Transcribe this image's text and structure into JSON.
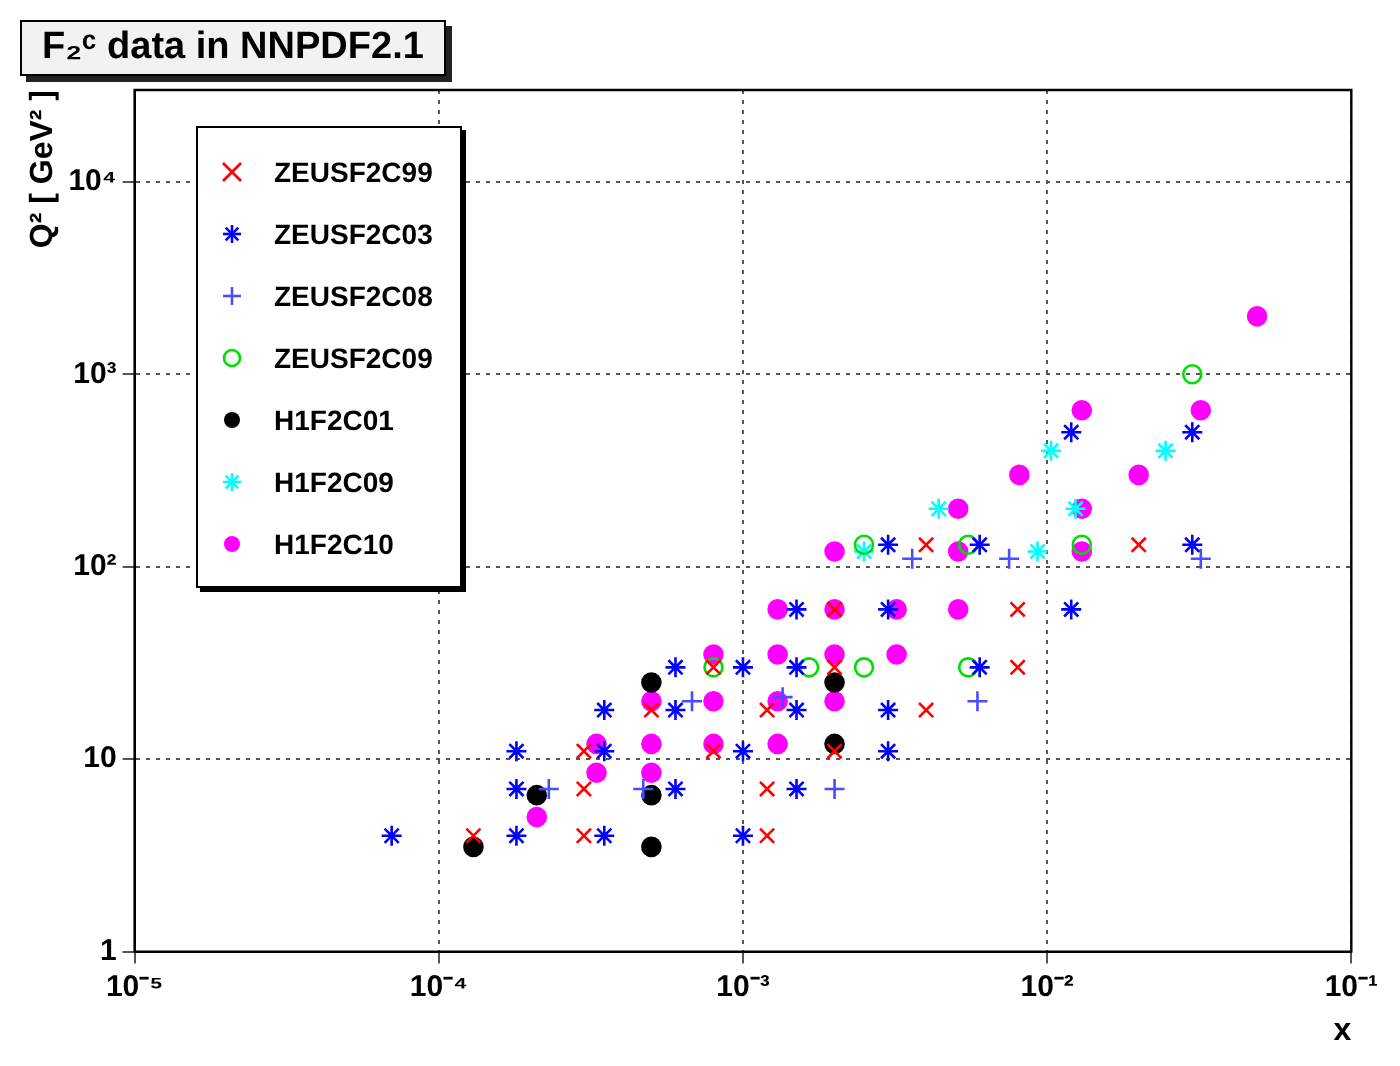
{
  "chart_data": {
    "type": "scatter",
    "title": "F₂ᶜ data in NNPDF2.1",
    "xlabel": "x",
    "ylabel": "Q² [ GeV² ]",
    "log": "xy",
    "grid": true,
    "legend": "top left",
    "xlim": [
      1e-05,
      0.1
    ],
    "ylim": [
      1,
      30000
    ],
    "xticks": [
      {
        "value": 1e-05,
        "label": "10⁻⁵"
      },
      {
        "value": 0.0001,
        "label": "10⁻⁴"
      },
      {
        "value": 0.001,
        "label": "10⁻³"
      },
      {
        "value": 0.01,
        "label": "10⁻²"
      },
      {
        "value": 0.1,
        "label": "10⁻¹"
      }
    ],
    "yticks": [
      1,
      10,
      {
        "value": 100,
        "label": "10²"
      },
      {
        "value": 1000,
        "label": "10³"
      },
      {
        "value": 10000,
        "label": "10⁴"
      }
    ],
    "series": [
      {
        "name": "ZEUSF2C99",
        "color": "#ff0000",
        "marker": "x",
        "x": [
          0.00013,
          0.0003,
          0.0003,
          0.0003,
          0.0005,
          0.0008,
          0.0008,
          0.0012,
          0.0012,
          0.0012,
          0.002,
          0.002,
          0.002,
          0.004,
          0.004,
          0.008,
          0.008,
          0.02
        ],
        "values": [
          4,
          4,
          7,
          11,
          18,
          11,
          30,
          4,
          7,
          18,
          11,
          30,
          60,
          18,
          130,
          30,
          60,
          130
        ]
      },
      {
        "name": "ZEUSF2C03",
        "color": "#0000ff",
        "marker": "cross",
        "x": [
          7e-05,
          0.00018,
          0.00018,
          0.00018,
          0.00035,
          0.00035,
          0.00035,
          0.0006,
          0.0006,
          0.0006,
          0.001,
          0.001,
          0.001,
          0.0015,
          0.0015,
          0.0015,
          0.0015,
          0.003,
          0.003,
          0.003,
          0.003,
          0.006,
          0.006,
          0.012,
          0.012,
          0.03,
          0.03
        ],
        "values": [
          4,
          4,
          7,
          11,
          4,
          11,
          18,
          7,
          18,
          30,
          4,
          11,
          30,
          7,
          18,
          30,
          60,
          11,
          18,
          60,
          130,
          30,
          130,
          60,
          500,
          130,
          500
        ]
      },
      {
        "name": "ZEUSF2C08",
        "color": "#4c4cff",
        "marker": "plus",
        "x": [
          0.00023,
          0.00047,
          0.00068,
          0.00135,
          0.002,
          0.0036,
          0.0059,
          0.0075,
          0.032
        ],
        "values": [
          7,
          7,
          20,
          21,
          7,
          110,
          20,
          110,
          110
        ]
      },
      {
        "name": "ZEUSF2C09",
        "color": "#00dd00",
        "marker": "circle-open",
        "x": [
          0.0008,
          0.00165,
          0.0025,
          0.0025,
          0.0055,
          0.0055,
          0.013,
          0.03
        ],
        "values": [
          30,
          30,
          30,
          130,
          30,
          130,
          130,
          1000
        ]
      },
      {
        "name": "H1F2C01",
        "color": "#000000",
        "marker": "circle",
        "x": [
          0.00013,
          0.00021,
          0.0005,
          0.0005,
          0.0005,
          0.002,
          0.002
        ],
        "values": [
          3.5,
          6.5,
          3.5,
          6.5,
          25,
          12,
          25
        ]
      },
      {
        "name": "H1F2C09",
        "color": "#00ffff",
        "marker": "cross",
        "x": [
          0.0025,
          0.0044,
          0.0093,
          0.0103,
          0.0124,
          0.0245
        ],
        "values": [
          120,
          200,
          120,
          400,
          200,
          400
        ]
      },
      {
        "name": "H1F2C10",
        "color": "#ff00ff",
        "marker": "circle",
        "x": [
          0.00021,
          0.00033,
          0.00033,
          0.0005,
          0.0005,
          0.0005,
          0.0008,
          0.0008,
          0.0008,
          0.0013,
          0.0013,
          0.0013,
          0.0013,
          0.002,
          0.002,
          0.002,
          0.002,
          0.0032,
          0.0032,
          0.0051,
          0.0051,
          0.0051,
          0.0081,
          0.013,
          0.013,
          0.013,
          0.02,
          0.032,
          0.049
        ],
        "values": [
          5,
          8.5,
          12,
          8.5,
          12,
          20,
          12,
          20,
          35,
          12,
          20,
          35,
          60,
          20,
          35,
          60,
          120,
          35,
          60,
          60,
          120,
          200,
          300,
          120,
          200,
          650,
          300,
          650,
          2000
        ]
      }
    ]
  }
}
